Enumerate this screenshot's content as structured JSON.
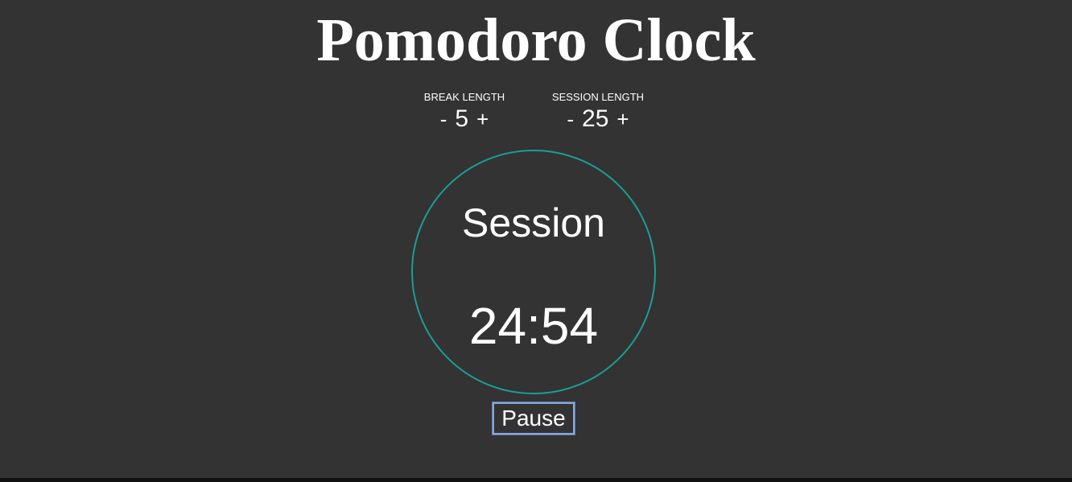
{
  "app": {
    "title": "Pomodoro Clock"
  },
  "break_control": {
    "label": "BREAK LENGTH",
    "decrement": "-",
    "value": "5",
    "increment": "+"
  },
  "session_control": {
    "label": "SESSION LENGTH",
    "decrement": "-",
    "value": "25",
    "increment": "+"
  },
  "clock": {
    "mode": "Session",
    "time": "24:54",
    "ring_color": "#1a9e98"
  },
  "actions": {
    "pause_label": "Pause"
  },
  "colors": {
    "background": "#333333",
    "text": "#ffffff",
    "accent": "#1a9e98"
  }
}
